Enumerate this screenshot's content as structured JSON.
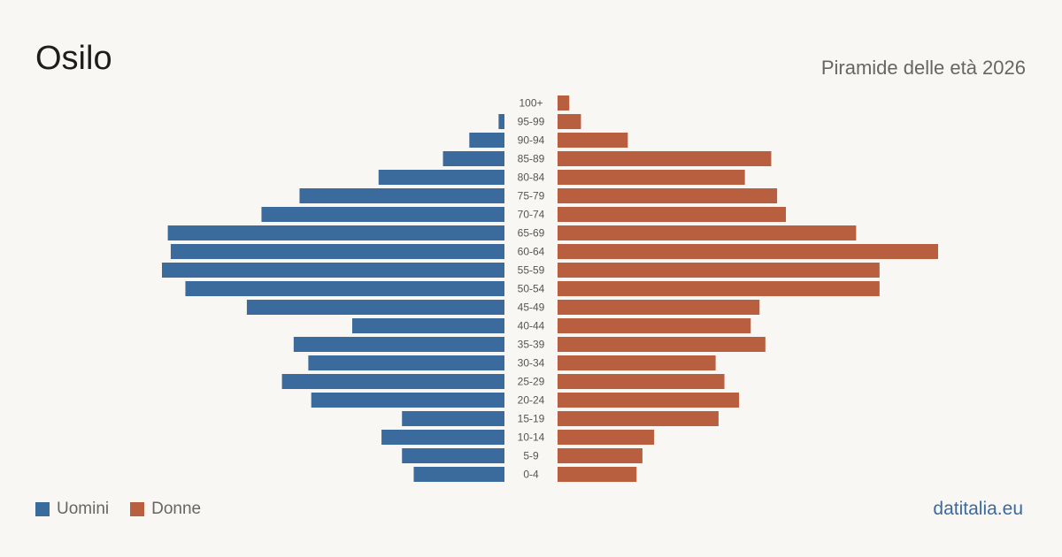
{
  "header": {
    "title": "Osilo",
    "subtitle": "Piramide delle età 2026"
  },
  "legend": {
    "men_label": "Uomini",
    "women_label": "Donne",
    "men_color": "#3b6a9d",
    "women_color": "#b85f3f"
  },
  "brand": "datitalia.eu",
  "chart_data": {
    "type": "bar",
    "orientation": "horizontal-population-pyramid",
    "title": "Piramide delle età 2026",
    "xlabel": "",
    "ylabel": "",
    "grid": false,
    "legend_position": "bottom-left",
    "categories": [
      "100+",
      "95-99",
      "90-94",
      "85-89",
      "80-84",
      "75-79",
      "70-74",
      "65-69",
      "60-64",
      "55-59",
      "50-54",
      "45-49",
      "40-44",
      "35-39",
      "30-34",
      "25-29",
      "20-24",
      "15-19",
      "10-14",
      "5-9",
      "0-4"
    ],
    "series": [
      {
        "name": "Uomini",
        "color": "#3b6a9d",
        "values": [
          0,
          2,
          12,
          21,
          43,
          70,
          83,
          115,
          114,
          117,
          109,
          88,
          52,
          72,
          67,
          76,
          66,
          35,
          42,
          35,
          31
        ]
      },
      {
        "name": "Donne",
        "color": "#b85f3f",
        "values": [
          4,
          8,
          24,
          73,
          64,
          75,
          78,
          102,
          130,
          110,
          110,
          69,
          66,
          71,
          54,
          57,
          62,
          55,
          33,
          29,
          27
        ]
      }
    ],
    "xlim": [
      0,
      130
    ]
  }
}
